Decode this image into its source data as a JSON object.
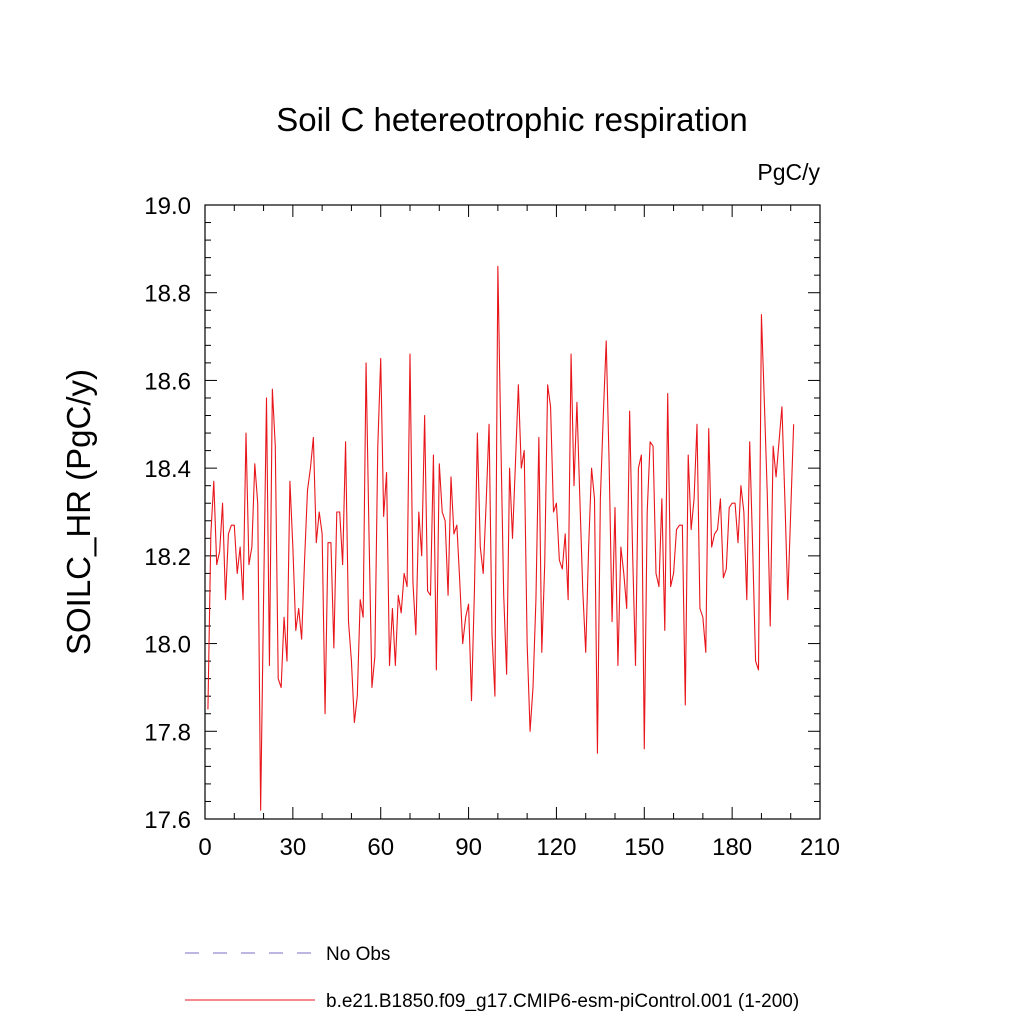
{
  "chart_data": {
    "type": "line",
    "title": "Soil C hetereotrophic respiration",
    "units": "PgC/y",
    "xlabel": "",
    "ylabel": "SOILC_HR  (PgC/y)",
    "xlim": [
      0,
      210
    ],
    "ylim": [
      17.6,
      19.0
    ],
    "x_ticks": [
      0,
      30,
      60,
      90,
      120,
      150,
      180,
      210
    ],
    "y_ticks": [
      17.6,
      17.8,
      18.0,
      18.2,
      18.4,
      18.6,
      18.8,
      19.0
    ],
    "x_tick_labels": [
      "0",
      "30",
      "60",
      "90",
      "120",
      "150",
      "180",
      "210"
    ],
    "y_tick_labels": [
      "17.6",
      "17.8",
      "18.0",
      "18.2",
      "18.4",
      "18.6",
      "18.8",
      "19.0"
    ],
    "grid": false,
    "legend_position": "bottom",
    "series": [
      {
        "name": "No Obs",
        "color": "#7b6bc4",
        "dash": "dashed",
        "values": []
      },
      {
        "name": "b.e21.B1850.f09_g17.CMIP6-esm-piControl.001 (1-200)",
        "color": "#e8161b",
        "dash": "solid",
        "x_start": 1,
        "x_step": 1,
        "values": [
          17.85,
          18.25,
          18.37,
          18.18,
          18.21,
          18.32,
          18.1,
          18.25,
          18.27,
          18.27,
          18.16,
          18.22,
          18.1,
          18.48,
          18.18,
          18.22,
          18.41,
          18.32,
          17.62,
          18.1,
          18.56,
          17.95,
          18.58,
          18.45,
          17.92,
          17.9,
          18.06,
          17.96,
          18.37,
          18.22,
          18.03,
          18.08,
          18.01,
          18.19,
          18.35,
          18.4,
          18.47,
          18.23,
          18.3,
          18.25,
          17.84,
          18.23,
          18.23,
          17.99,
          18.3,
          18.3,
          18.18,
          18.46,
          18.05,
          17.96,
          17.82,
          17.88,
          18.1,
          18.06,
          18.64,
          18.25,
          17.9,
          17.97,
          18.45,
          18.65,
          18.29,
          18.39,
          17.95,
          18.08,
          17.95,
          18.11,
          18.07,
          18.16,
          18.13,
          18.66,
          18.14,
          18.02,
          18.3,
          18.2,
          18.52,
          18.12,
          18.11,
          18.43,
          17.94,
          18.41,
          18.3,
          18.28,
          18.11,
          18.38,
          18.25,
          18.27,
          18.14,
          18.0,
          18.06,
          18.09,
          17.87,
          18.12,
          18.48,
          18.22,
          18.16,
          18.32,
          18.5,
          18.02,
          17.88,
          18.86,
          18.47,
          18.11,
          17.93,
          18.4,
          18.24,
          18.41,
          18.59,
          18.4,
          18.44,
          18.0,
          17.8,
          17.9,
          18.1,
          18.47,
          17.98,
          18.18,
          18.59,
          18.54,
          18.3,
          18.32,
          18.19,
          18.17,
          18.25,
          18.1,
          18.66,
          18.36,
          18.55,
          18.33,
          18.12,
          17.98,
          18.22,
          18.4,
          18.33,
          17.75,
          18.33,
          18.52,
          18.69,
          18.41,
          18.05,
          18.31,
          17.95,
          18.22,
          18.16,
          18.08,
          18.53,
          18.21,
          17.95,
          18.4,
          18.43,
          17.76,
          18.3,
          18.46,
          18.45,
          18.16,
          18.13,
          18.33,
          18.03,
          18.57,
          18.13,
          18.16,
          18.26,
          18.27,
          18.27,
          17.86,
          18.43,
          18.26,
          18.33,
          18.5,
          18.08,
          18.06,
          17.98,
          18.49,
          18.22,
          18.25,
          18.26,
          18.33,
          18.15,
          18.17,
          18.31,
          18.32,
          18.32,
          18.23,
          18.36,
          18.3,
          18.1,
          18.46,
          18.22,
          17.96,
          17.94,
          18.75,
          18.55,
          18.34,
          18.04,
          18.45,
          18.38,
          18.46,
          18.54,
          18.33,
          18.1,
          18.3,
          18.5
        ]
      }
    ]
  }
}
